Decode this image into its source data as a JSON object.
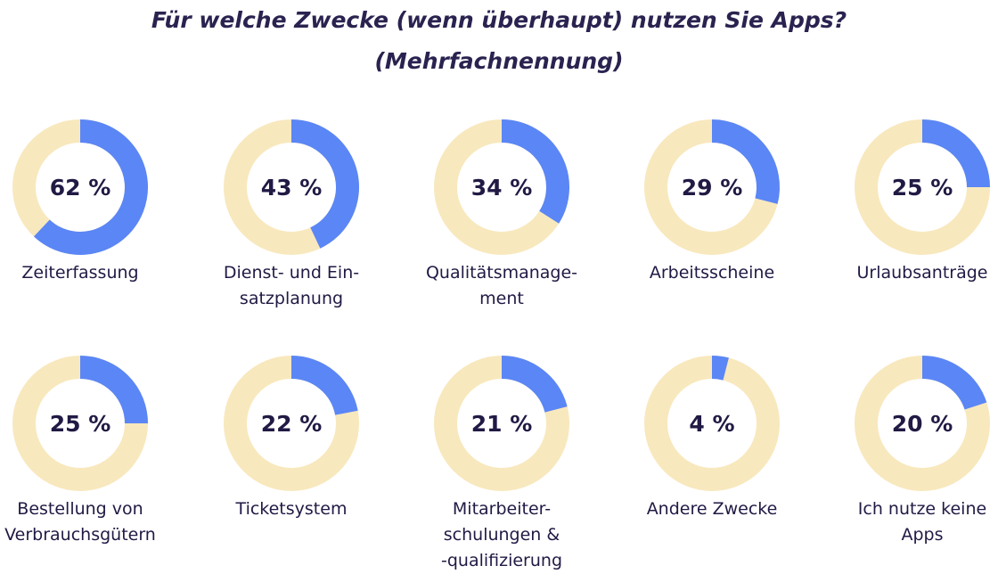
{
  "title_line_1": "Für welche Zwecke (wenn überhaupt) nutzen Sie Apps?",
  "title_line_2": "(Mehrfachnennung)",
  "colors": {
    "value_arc": "#5b86f5",
    "track": "#f8e8bd",
    "text": "#201a44"
  },
  "chart_data": {
    "type": "donut",
    "title": "Für welche Zwecke (wenn überhaupt) nutzen Sie Apps? (Mehrfachnennung)",
    "unit": "%",
    "items": [
      {
        "value": 62,
        "value_text": "62 %",
        "label_lines": [
          "Zeiterfassung"
        ]
      },
      {
        "value": 43,
        "value_text": "43 %",
        "label_lines": [
          "Dienst- und Ein-",
          "satzplanung"
        ]
      },
      {
        "value": 34,
        "value_text": "34 %",
        "label_lines": [
          "Qualitätsmanage-",
          "ment"
        ]
      },
      {
        "value": 29,
        "value_text": "29 %",
        "label_lines": [
          "Arbeitsscheine"
        ]
      },
      {
        "value": 25,
        "value_text": "25 %",
        "label_lines": [
          "Urlaubsanträge"
        ]
      },
      {
        "value": 25,
        "value_text": "25 %",
        "label_lines": [
          "Bestellung von",
          "Verbrauchsgütern"
        ]
      },
      {
        "value": 22,
        "value_text": "22 %",
        "label_lines": [
          "Ticketsystem"
        ]
      },
      {
        "value": 21,
        "value_text": "21 %",
        "label_lines": [
          "Mitarbeiter-",
          "schulungen &",
          "-qualifizierung"
        ]
      },
      {
        "value": 4,
        "value_text": "4 %",
        "label_lines": [
          "Andere Zwecke"
        ]
      },
      {
        "value": 20,
        "value_text": "20 %",
        "label_lines": [
          "Ich nutze keine",
          "Apps"
        ]
      }
    ]
  }
}
